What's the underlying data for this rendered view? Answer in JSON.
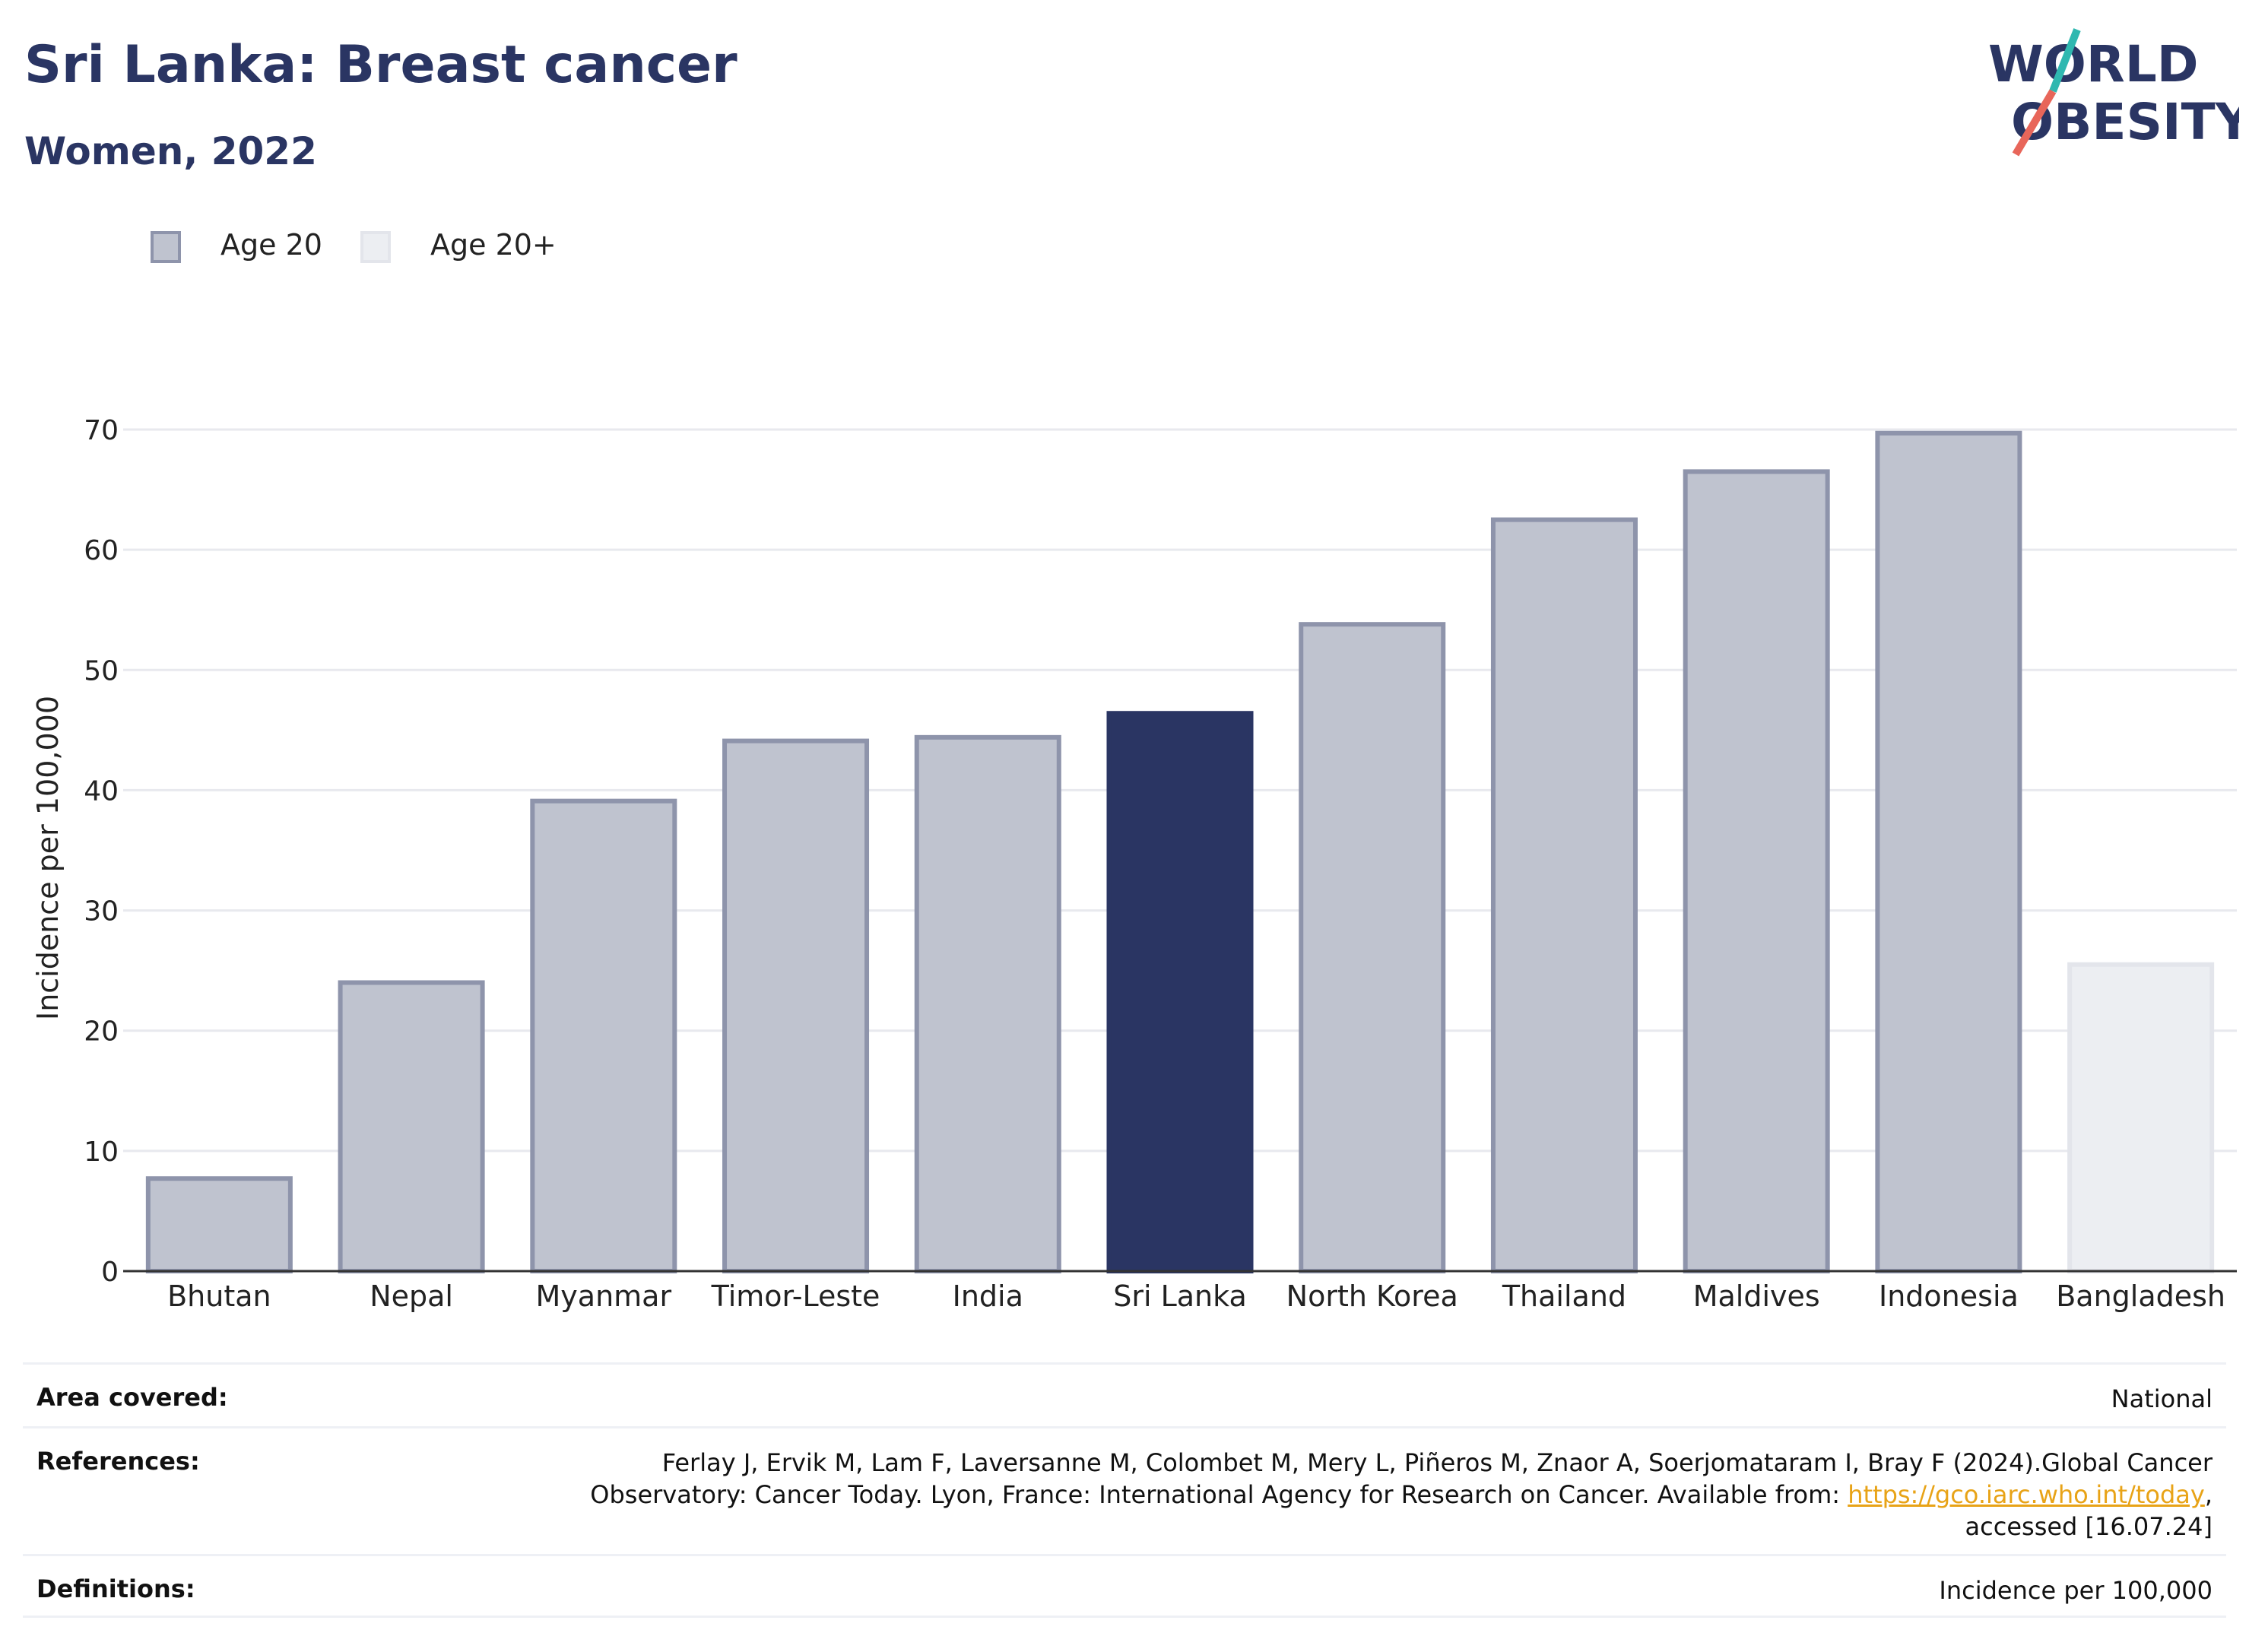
{
  "header": {
    "title": "Sri Lanka: Breast cancer",
    "subtitle": "Women, 2022"
  },
  "logo": {
    "line1": "WORLD",
    "line2": "OBESITY"
  },
  "legend": [
    {
      "label": "Age 20",
      "color": "#bfc3cf",
      "border": "#8e94ab"
    },
    {
      "label": "Age 20+",
      "color": "#eceef2",
      "border": "#e3e5eb"
    }
  ],
  "chart_data": {
    "type": "bar",
    "categories": [
      "Bhutan",
      "Nepal",
      "Myanmar",
      "Timor-Leste",
      "India",
      "Sri Lanka",
      "North Korea",
      "Thailand",
      "Maldives",
      "Indonesia",
      "Bangladesh"
    ],
    "values": [
      7.7,
      24.0,
      39.1,
      44.1,
      44.4,
      46.4,
      53.8,
      62.5,
      66.5,
      69.7,
      25.5
    ],
    "groups": [
      "Age 20",
      "Age 20",
      "Age 20",
      "Age 20",
      "Age 20",
      "highlight",
      "Age 20",
      "Age 20",
      "Age 20",
      "Age 20",
      "Age 20+"
    ],
    "highlight_color": "#2a3563",
    "ylabel": "Incidence per 100,000",
    "xlabel": "",
    "ylim": [
      0,
      70
    ],
    "yticks": [
      0,
      10,
      20,
      30,
      40,
      50,
      60,
      70
    ],
    "grid": true
  },
  "info": {
    "area_label": "Area covered:",
    "area_value": "National",
    "references_label": "References:",
    "references_text_1": "Ferlay J, Ervik M, Lam F, Laversanne M, Colombet M, Mery L, Piñeros M, Znaor A, Soerjomataram I, Bray F (2024).Global Cancer",
    "references_text_2": "Observatory: Cancer Today. Lyon, France: International Agency for Research on Cancer. Available from: ",
    "references_link": "https://gco.iarc.who.int/today",
    "references_text_3": ",",
    "references_text_4": "accessed [16.07.24]",
    "definitions_label": "Definitions:",
    "definitions_value": "Incidence per 100,000"
  }
}
